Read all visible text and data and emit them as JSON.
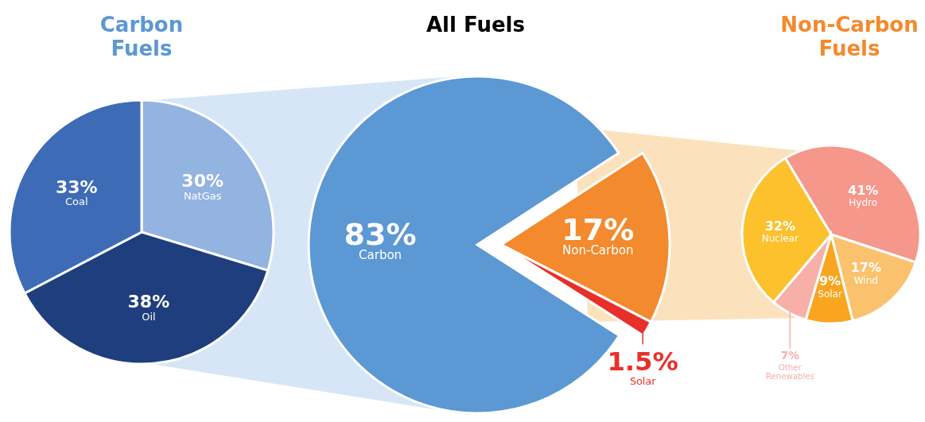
{
  "chart_data": [
    {
      "type": "pie",
      "title": "Carbon Fuels",
      "categories": [
        "NatGas",
        "Oil",
        "Coal"
      ],
      "values": [
        30,
        38,
        33
      ],
      "colors": [
        "#93b3e0",
        "#1f3e7e",
        "#3d6bb6"
      ],
      "value_labels": [
        "30%",
        "38%",
        "33%"
      ]
    },
    {
      "type": "pie",
      "title": "All Fuels",
      "categories": [
        "Non-Carbon",
        "Solar",
        "Carbon"
      ],
      "values": [
        17,
        1.5,
        83
      ],
      "colors": [
        "#f38a2e",
        "#e8302a",
        "#5b98d4"
      ],
      "value_labels": [
        "17%",
        "1.5%",
        "83%"
      ]
    },
    {
      "type": "pie",
      "title": "Non-Carbon Fuels",
      "categories": [
        "Hydro",
        "Wind",
        "Solar",
        "Other Renewables",
        "Nuclear"
      ],
      "values": [
        41,
        17,
        9,
        7,
        32
      ],
      "colors": [
        "#f5978a",
        "#fbc26e",
        "#f9a51e",
        "#f6b0a8",
        "#fcc12c"
      ],
      "value_labels": [
        "41%",
        "17%",
        "9%",
        "7%",
        "32%"
      ]
    }
  ]
}
